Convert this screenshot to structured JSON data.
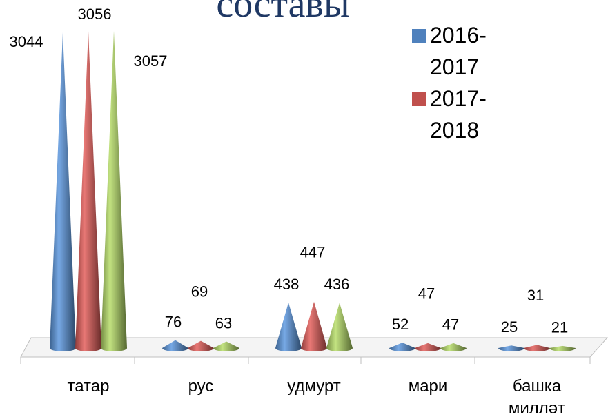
{
  "chart_data": {
    "type": "cone",
    "title": "составы",
    "categories": [
      "татар",
      "рус",
      "удмурт",
      "мари",
      "башка миллəт"
    ],
    "series": [
      {
        "name": "2016-2017",
        "color": "#4f81bd",
        "values": [
          3044,
          76,
          438,
          52,
          25
        ]
      },
      {
        "name": "2017-2018",
        "color": "#c0504d",
        "values": [
          3056,
          69,
          447,
          47,
          31
        ]
      },
      {
        "color": "#9bbb59",
        "values": [
          3057,
          63,
          436,
          47,
          21
        ]
      }
    ]
  }
}
